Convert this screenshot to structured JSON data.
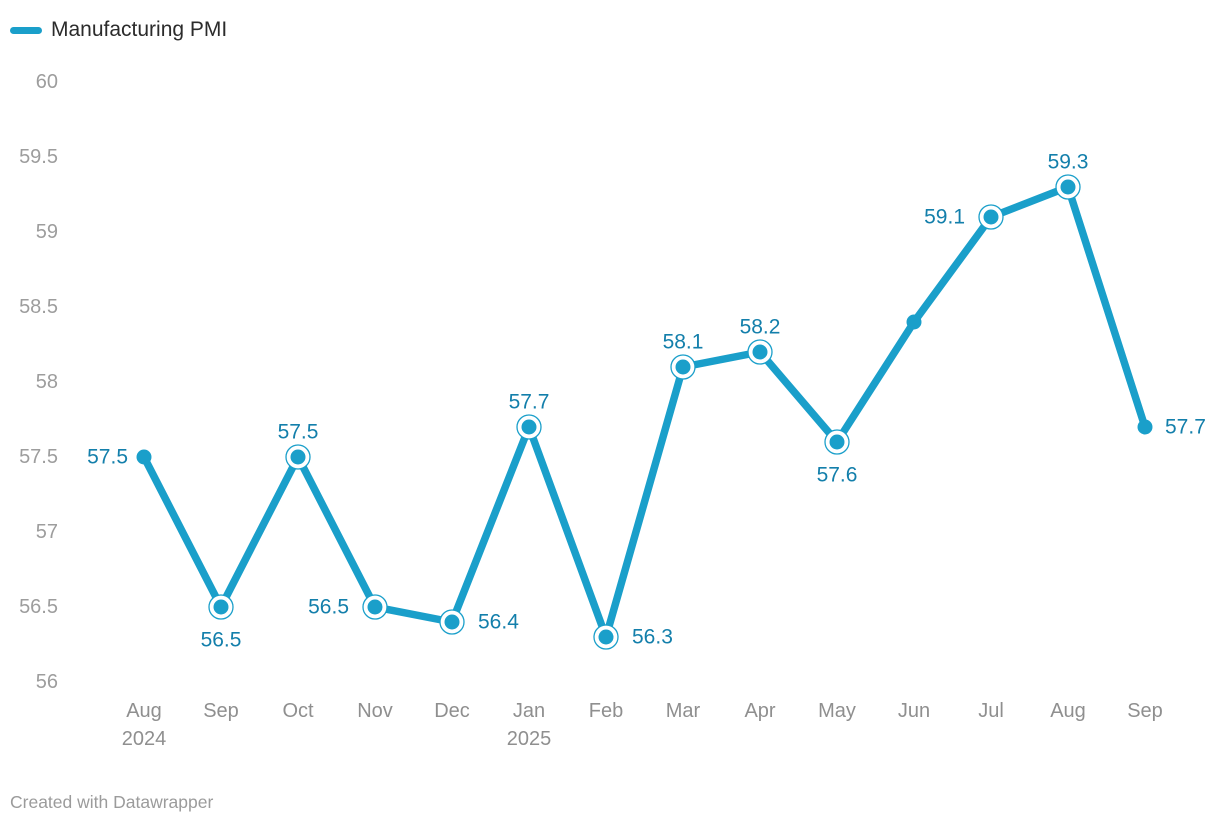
{
  "legend": {
    "label": "Manufacturing PMI"
  },
  "footer": {
    "text": "Created with Datawrapper"
  },
  "colors": {
    "line": "#1a9fca",
    "data_label": "#137fab",
    "y_axis_text": "#9d9d9d",
    "x_axis_text": "#8f8f8f",
    "legend_text": "#2b2b2b",
    "footer_text": "#9b9b9b"
  },
  "chart_data": {
    "type": "line",
    "title": "",
    "series_name": "Manufacturing PMI",
    "legend_position": "top-left",
    "grid": false,
    "y_axis": {
      "min": 56,
      "max": 60,
      "step": 0.5
    },
    "x_tick_labels": [
      "Aug",
      "Sep",
      "Oct",
      "Nov",
      "Dec",
      "Jan",
      "Feb",
      "Mar",
      "Apr",
      "May",
      "Jun",
      "Jul",
      "Aug",
      "Sep"
    ],
    "points": [
      {
        "month": "Aug",
        "year": "2024",
        "value": 57.5,
        "data_label": "57.5",
        "label_position": "left",
        "ring": false
      },
      {
        "month": "Sep",
        "year": "",
        "value": 56.5,
        "data_label": "56.5",
        "label_position": "below",
        "ring": true
      },
      {
        "month": "Oct",
        "year": "",
        "value": 57.5,
        "data_label": "57.5",
        "label_position": "above",
        "ring": true
      },
      {
        "month": "Nov",
        "year": "",
        "value": 56.5,
        "data_label": "56.5",
        "label_position": "left",
        "ring": true
      },
      {
        "month": "Dec",
        "year": "",
        "value": 56.4,
        "data_label": "56.4",
        "label_position": "right",
        "ring": true
      },
      {
        "month": "Jan",
        "year": "2025",
        "value": 57.7,
        "data_label": "57.7",
        "label_position": "above",
        "ring": true
      },
      {
        "month": "Feb",
        "year": "",
        "value": 56.3,
        "data_label": "56.3",
        "label_position": "right",
        "ring": true
      },
      {
        "month": "Mar",
        "year": "",
        "value": 58.1,
        "data_label": "58.1",
        "label_position": "above",
        "ring": true
      },
      {
        "month": "Apr",
        "year": "",
        "value": 58.2,
        "data_label": "58.2",
        "label_position": "above",
        "ring": true
      },
      {
        "month": "May",
        "year": "",
        "value": 57.6,
        "data_label": "57.6",
        "label_position": "below",
        "ring": true
      },
      {
        "month": "Jun",
        "year": "",
        "value": 58.4,
        "data_label": "",
        "label_position": "none",
        "ring": false
      },
      {
        "month": "Jul",
        "year": "",
        "value": 59.1,
        "data_label": "59.1",
        "label_position": "left",
        "ring": true
      },
      {
        "month": "Aug",
        "year": "",
        "value": 59.3,
        "data_label": "59.3",
        "label_position": "above",
        "ring": true
      },
      {
        "month": "Sep",
        "year": "",
        "value": 57.7,
        "data_label": "57.7",
        "label_position": "right",
        "ring": false
      }
    ]
  }
}
